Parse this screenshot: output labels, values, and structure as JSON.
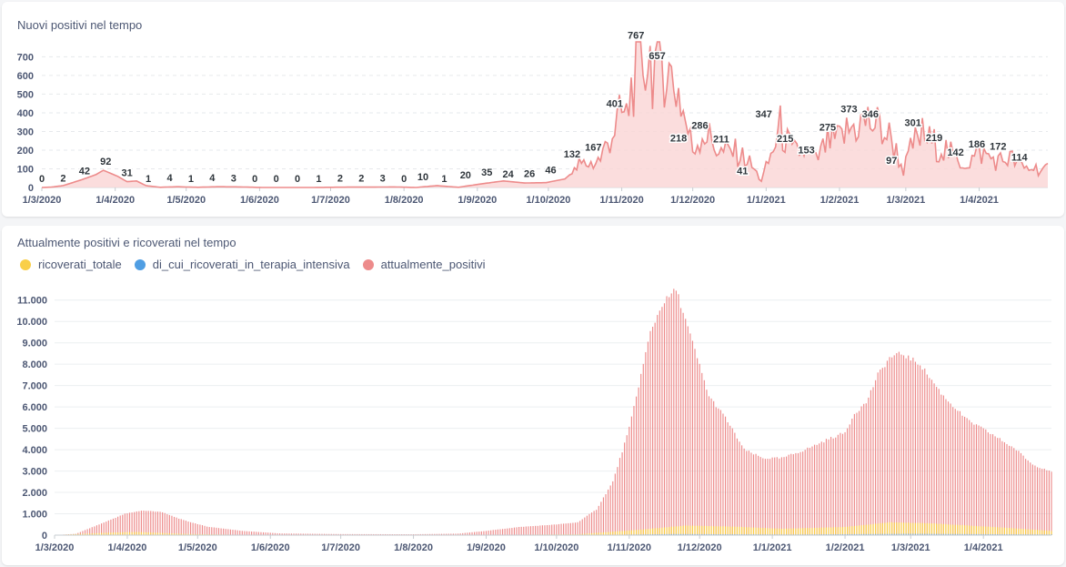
{
  "charts": {
    "new_positives": {
      "title": "Nuovi positivi nel tempo"
    },
    "current_positives": {
      "title": "Attualmente positivi e ricoverati nel tempo"
    }
  },
  "chart_data": [
    {
      "id": "new_positives",
      "type": "area",
      "title": "Nuovi positivi nel tempo",
      "color": "#ed8b8b",
      "fill_color": "#fad4d4",
      "ylim": [
        0,
        780
      ],
      "y_ticks": [
        0,
        100,
        200,
        300,
        400,
        500,
        600,
        700
      ],
      "x_range": [
        "2020-03-01",
        "2021-04-30"
      ],
      "x_ticks": [
        {
          "date": "2020-03-01",
          "label": "1/3/2020"
        },
        {
          "date": "2020-04-01",
          "label": "1/4/2020"
        },
        {
          "date": "2020-05-01",
          "label": "1/5/2020"
        },
        {
          "date": "2020-06-01",
          "label": "1/6/2020"
        },
        {
          "date": "2020-07-01",
          "label": "1/7/2020"
        },
        {
          "date": "2020-08-01",
          "label": "1/8/2020"
        },
        {
          "date": "2020-09-01",
          "label": "1/9/2020"
        },
        {
          "date": "2020-10-01",
          "label": "1/10/2020"
        },
        {
          "date": "2020-11-01",
          "label": "1/11/2020"
        },
        {
          "date": "2020-12-01",
          "label": "1/12/2020"
        },
        {
          "date": "2021-01-01",
          "label": "1/1/2021"
        },
        {
          "date": "2021-02-01",
          "label": "1/2/2021"
        },
        {
          "date": "2021-03-01",
          "label": "1/3/2021"
        },
        {
          "date": "2021-04-01",
          "label": "1/4/2021"
        }
      ],
      "anchors": [
        [
          "2020-03-01",
          0
        ],
        [
          "2020-03-05",
          2
        ],
        [
          "2020-03-10",
          10
        ],
        [
          "2020-03-15",
          30
        ],
        [
          "2020-03-18",
          42
        ],
        [
          "2020-03-24",
          70
        ],
        [
          "2020-03-27",
          92
        ],
        [
          "2020-04-02",
          60
        ],
        [
          "2020-04-06",
          31
        ],
        [
          "2020-04-10",
          35
        ],
        [
          "2020-04-14",
          10
        ],
        [
          "2020-04-20",
          1
        ],
        [
          "2020-04-27",
          4
        ],
        [
          "2020-05-06",
          1
        ],
        [
          "2020-05-14",
          4
        ],
        [
          "2020-05-24",
          3
        ],
        [
          "2020-06-02",
          0
        ],
        [
          "2020-06-12",
          0
        ],
        [
          "2020-06-22",
          0
        ],
        [
          "2020-07-01",
          1
        ],
        [
          "2020-07-10",
          2
        ],
        [
          "2020-07-19",
          2
        ],
        [
          "2020-07-28",
          3
        ],
        [
          "2020-08-06",
          0
        ],
        [
          "2020-08-15",
          10
        ],
        [
          "2020-08-24",
          1
        ],
        [
          "2020-09-03",
          20
        ],
        [
          "2020-09-12",
          35
        ],
        [
          "2020-09-21",
          24
        ],
        [
          "2020-09-30",
          26
        ],
        [
          "2020-10-08",
          46
        ],
        [
          "2020-10-12",
          90
        ],
        [
          "2020-10-14",
          132
        ],
        [
          "2020-10-20",
          140
        ],
        [
          "2020-10-23",
          167
        ],
        [
          "2020-10-28",
          320
        ],
        [
          "2020-11-01",
          420
        ],
        [
          "2020-11-03",
          401
        ],
        [
          "2020-11-06",
          650
        ],
        [
          "2020-11-09",
          720
        ],
        [
          "2020-11-12",
          767
        ],
        [
          "2020-11-16",
          700
        ],
        [
          "2020-11-19",
          760
        ],
        [
          "2020-11-21",
          657
        ],
        [
          "2020-11-25",
          560
        ],
        [
          "2020-11-28",
          380
        ],
        [
          "2020-12-01",
          218
        ],
        [
          "2020-12-05",
          320
        ],
        [
          "2020-12-08",
          286
        ],
        [
          "2020-12-13",
          200
        ],
        [
          "2020-12-18",
          211
        ],
        [
          "2020-12-24",
          160
        ],
        [
          "2020-12-30",
          41
        ],
        [
          "2021-01-03",
          180
        ],
        [
          "2021-01-07",
          347
        ],
        [
          "2021-01-12",
          200
        ],
        [
          "2021-01-17",
          215
        ],
        [
          "2021-01-22",
          153
        ],
        [
          "2021-01-27",
          260
        ],
        [
          "2021-02-01",
          275
        ],
        [
          "2021-02-05",
          330
        ],
        [
          "2021-02-09",
          373
        ],
        [
          "2021-02-14",
          380
        ],
        [
          "2021-02-18",
          346
        ],
        [
          "2021-02-23",
          280
        ],
        [
          "2021-02-28",
          97
        ],
        [
          "2021-03-04",
          250
        ],
        [
          "2021-03-08",
          301
        ],
        [
          "2021-03-13",
          250
        ],
        [
          "2021-03-18",
          219
        ],
        [
          "2021-03-23",
          150
        ],
        [
          "2021-03-27",
          142
        ],
        [
          "2021-04-01",
          200
        ],
        [
          "2021-04-04",
          186
        ],
        [
          "2021-04-09",
          150
        ],
        [
          "2021-04-14",
          172
        ],
        [
          "2021-04-20",
          110
        ],
        [
          "2021-04-24",
          114
        ],
        [
          "2021-04-30",
          100
        ]
      ],
      "labels": [
        {
          "date": "2020-03-01",
          "value": 0,
          "text": "0"
        },
        {
          "date": "2020-03-10",
          "value": 2,
          "text": "2"
        },
        {
          "date": "2020-03-19",
          "value": 42,
          "text": "42"
        },
        {
          "date": "2020-03-28",
          "value": 92,
          "text": "92"
        },
        {
          "date": "2020-04-06",
          "value": 31,
          "text": "31"
        },
        {
          "date": "2020-04-15",
          "value": 1,
          "text": "1"
        },
        {
          "date": "2020-04-24",
          "value": 4,
          "text": "4"
        },
        {
          "date": "2020-05-03",
          "value": 1,
          "text": "1"
        },
        {
          "date": "2020-05-12",
          "value": 4,
          "text": "4"
        },
        {
          "date": "2020-05-21",
          "value": 3,
          "text": "3"
        },
        {
          "date": "2020-05-30",
          "value": 0,
          "text": "0"
        },
        {
          "date": "2020-06-08",
          "value": 0,
          "text": "0"
        },
        {
          "date": "2020-06-17",
          "value": 0,
          "text": "0"
        },
        {
          "date": "2020-06-26",
          "value": 1,
          "text": "1"
        },
        {
          "date": "2020-07-05",
          "value": 2,
          "text": "2"
        },
        {
          "date": "2020-07-14",
          "value": 2,
          "text": "2"
        },
        {
          "date": "2020-07-23",
          "value": 3,
          "text": "3"
        },
        {
          "date": "2020-08-01",
          "value": 0,
          "text": "0"
        },
        {
          "date": "2020-08-09",
          "value": 10,
          "text": "10"
        },
        {
          "date": "2020-08-18",
          "value": 1,
          "text": "1"
        },
        {
          "date": "2020-08-27",
          "value": 20,
          "text": "20"
        },
        {
          "date": "2020-09-05",
          "value": 35,
          "text": "35"
        },
        {
          "date": "2020-09-14",
          "value": 24,
          "text": "24"
        },
        {
          "date": "2020-09-23",
          "value": 26,
          "text": "26"
        },
        {
          "date": "2020-10-02",
          "value": 46,
          "text": "46"
        },
        {
          "date": "2020-10-11",
          "value": 132,
          "text": "132"
        },
        {
          "date": "2020-10-20",
          "value": 167,
          "text": "167"
        },
        {
          "date": "2020-10-29",
          "value": 401,
          "text": "401"
        },
        {
          "date": "2020-11-07",
          "value": 767,
          "text": "767"
        },
        {
          "date": "2020-11-16",
          "value": 657,
          "text": "657"
        },
        {
          "date": "2020-11-25",
          "value": 218,
          "text": "218"
        },
        {
          "date": "2020-12-04",
          "value": 286,
          "text": "286"
        },
        {
          "date": "2020-12-13",
          "value": 211,
          "text": "211"
        },
        {
          "date": "2020-12-22",
          "value": 41,
          "text": "41"
        },
        {
          "date": "2020-12-31",
          "value": 347,
          "text": "347"
        },
        {
          "date": "2021-01-09",
          "value": 215,
          "text": "215"
        },
        {
          "date": "2021-01-18",
          "value": 153,
          "text": "153"
        },
        {
          "date": "2021-01-27",
          "value": 275,
          "text": "275"
        },
        {
          "date": "2021-02-05",
          "value": 373,
          "text": "373"
        },
        {
          "date": "2021-02-14",
          "value": 346,
          "text": "346"
        },
        {
          "date": "2021-02-23",
          "value": 97,
          "text": "97"
        },
        {
          "date": "2021-03-04",
          "value": 301,
          "text": "301"
        },
        {
          "date": "2021-03-13",
          "value": 219,
          "text": "219"
        },
        {
          "date": "2021-03-22",
          "value": 142,
          "text": "142"
        },
        {
          "date": "2021-03-31",
          "value": 186,
          "text": "186"
        },
        {
          "date": "2021-04-09",
          "value": 172,
          "text": "172"
        },
        {
          "date": "2021-04-18",
          "value": 114,
          "text": "114"
        }
      ]
    },
    {
      "id": "current_positives",
      "type": "bar",
      "title": "Attualmente positivi e ricoverati nel tempo",
      "ylim": [
        0,
        11500
      ],
      "y_ticks": [
        {
          "value": 0,
          "label": "0"
        },
        {
          "value": 1000,
          "label": "1.000"
        },
        {
          "value": 2000,
          "label": "2.000"
        },
        {
          "value": 3000,
          "label": "3.000"
        },
        {
          "value": 4000,
          "label": "4.000"
        },
        {
          "value": 5000,
          "label": "5.000"
        },
        {
          "value": 6000,
          "label": "6.000"
        },
        {
          "value": 7000,
          "label": "7.000"
        },
        {
          "value": 8000,
          "label": "8.000"
        },
        {
          "value": 9000,
          "label": "9.000"
        },
        {
          "value": 10000,
          "label": "10.000"
        },
        {
          "value": 11000,
          "label": "11.000"
        }
      ],
      "x_range": [
        "2020-03-01",
        "2021-04-30"
      ],
      "x_ticks": [
        {
          "date": "2020-03-01",
          "label": "1/3/2020"
        },
        {
          "date": "2020-04-01",
          "label": "1/4/2020"
        },
        {
          "date": "2020-05-01",
          "label": "1/5/2020"
        },
        {
          "date": "2020-06-01",
          "label": "1/6/2020"
        },
        {
          "date": "2020-07-01",
          "label": "1/7/2020"
        },
        {
          "date": "2020-08-01",
          "label": "1/8/2020"
        },
        {
          "date": "2020-09-01",
          "label": "1/9/2020"
        },
        {
          "date": "2020-10-01",
          "label": "1/10/2020"
        },
        {
          "date": "2020-11-01",
          "label": "1/11/2020"
        },
        {
          "date": "2020-12-01",
          "label": "1/12/2020"
        },
        {
          "date": "2021-01-01",
          "label": "1/1/2021"
        },
        {
          "date": "2021-02-01",
          "label": "1/2/2021"
        },
        {
          "date": "2021-03-01",
          "label": "1/3/2021"
        },
        {
          "date": "2021-04-01",
          "label": "1/4/2021"
        }
      ],
      "series": [
        {
          "name": "ricoverati_totale",
          "color": "#f9cf48",
          "anchors": [
            [
              "2020-03-01",
              5
            ],
            [
              "2020-03-25",
              120
            ],
            [
              "2020-04-05",
              150
            ],
            [
              "2020-04-25",
              60
            ],
            [
              "2020-05-20",
              15
            ],
            [
              "2020-06-30",
              5
            ],
            [
              "2020-09-01",
              10
            ],
            [
              "2020-10-10",
              40
            ],
            [
              "2020-11-05",
              250
            ],
            [
              "2020-11-25",
              450
            ],
            [
              "2020-12-15",
              400
            ],
            [
              "2021-01-05",
              300
            ],
            [
              "2021-02-01",
              380
            ],
            [
              "2021-02-20",
              600
            ],
            [
              "2021-03-10",
              550
            ],
            [
              "2021-04-10",
              350
            ],
            [
              "2021-04-30",
              200
            ]
          ]
        },
        {
          "name": "di_cui_ricoverati_in_terapia_intensiva",
          "color": "#509ee3",
          "anchors": [
            [
              "2020-03-01",
              1
            ],
            [
              "2020-04-01",
              20
            ],
            [
              "2020-06-01",
              1
            ],
            [
              "2020-10-15",
              5
            ],
            [
              "2020-11-20",
              50
            ],
            [
              "2021-01-10",
              30
            ],
            [
              "2021-03-01",
              60
            ],
            [
              "2021-04-30",
              30
            ]
          ]
        },
        {
          "name": "attualmente_positivi",
          "color": "#ed8b8b",
          "anchors": [
            [
              "2020-03-01",
              0
            ],
            [
              "2020-03-10",
              60
            ],
            [
              "2020-03-20",
              500
            ],
            [
              "2020-03-31",
              1000
            ],
            [
              "2020-04-07",
              1150
            ],
            [
              "2020-04-15",
              1100
            ],
            [
              "2020-04-25",
              700
            ],
            [
              "2020-05-05",
              400
            ],
            [
              "2020-05-20",
              200
            ],
            [
              "2020-06-05",
              80
            ],
            [
              "2020-06-30",
              50
            ],
            [
              "2020-07-31",
              40
            ],
            [
              "2020-08-20",
              70
            ],
            [
              "2020-09-01",
              200
            ],
            [
              "2020-09-15",
              380
            ],
            [
              "2020-10-01",
              500
            ],
            [
              "2020-10-10",
              600
            ],
            [
              "2020-10-18",
              1200
            ],
            [
              "2020-10-25",
              2500
            ],
            [
              "2020-11-01",
              5000
            ],
            [
              "2020-11-05",
              7000
            ],
            [
              "2020-11-10",
              9500
            ],
            [
              "2020-11-15",
              10800
            ],
            [
              "2020-11-21",
              11500
            ],
            [
              "2020-11-28",
              9000
            ],
            [
              "2020-12-05",
              6500
            ],
            [
              "2020-12-12",
              5500
            ],
            [
              "2020-12-20",
              4000
            ],
            [
              "2020-12-28",
              3600
            ],
            [
              "2021-01-05",
              3600
            ],
            [
              "2021-01-15",
              4000
            ],
            [
              "2021-01-25",
              4500
            ],
            [
              "2021-02-01",
              4800
            ],
            [
              "2021-02-05",
              5700
            ],
            [
              "2021-02-10",
              6200
            ],
            [
              "2021-02-15",
              7500
            ],
            [
              "2021-02-20",
              8300
            ],
            [
              "2021-02-25",
              8500
            ],
            [
              "2021-03-05",
              8000
            ],
            [
              "2021-03-15",
              6500
            ],
            [
              "2021-03-25",
              5400
            ],
            [
              "2021-04-05",
              4700
            ],
            [
              "2021-04-15",
              4000
            ],
            [
              "2021-04-22",
              3300
            ],
            [
              "2021-04-30",
              3000
            ]
          ]
        }
      ]
    }
  ]
}
